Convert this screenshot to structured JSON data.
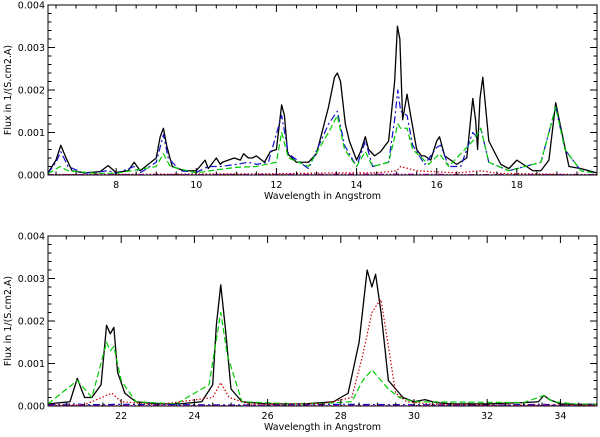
{
  "chart_data": [
    {
      "type": "line",
      "xlabel": "Wavelength in Angstrom",
      "ylabel": "Flux in 1/(S.cm2.A)",
      "xlim": [
        6.3,
        20.0
      ],
      "ylim": [
        0,
        0.004
      ],
      "xticks": [
        8,
        10,
        12,
        14,
        16,
        18
      ],
      "xtick_labels": [
        "8",
        "10",
        "12",
        "14",
        "16",
        "18"
      ],
      "yticks": [
        0,
        0.001,
        0.002,
        0.003,
        0.004
      ],
      "ytick_labels": [
        "0.000",
        "0.001",
        "0.002",
        "0.003",
        "0.004"
      ],
      "grid": false,
      "series": [
        {
          "color": "#000000",
          "dash": "solid",
          "x": [
            6.3,
            6.5,
            6.62,
            6.75,
            6.9,
            7.2,
            7.6,
            7.8,
            8.0,
            8.3,
            8.45,
            8.6,
            9.0,
            9.1,
            9.18,
            9.26,
            9.4,
            9.7,
            10.0,
            10.22,
            10.3,
            10.5,
            10.6,
            10.65,
            10.8,
            10.95,
            11.1,
            11.18,
            11.3,
            11.4,
            11.5,
            11.7,
            11.85,
            12.0,
            12.13,
            12.2,
            12.28,
            12.5,
            12.8,
            13.0,
            13.3,
            13.45,
            13.52,
            13.6,
            13.72,
            13.82,
            14.0,
            14.1,
            14.22,
            14.3,
            14.45,
            14.6,
            14.8,
            14.95,
            15.02,
            15.08,
            15.15,
            15.26,
            15.35,
            15.5,
            15.62,
            15.7,
            15.85,
            16.0,
            16.07,
            16.2,
            16.5,
            16.75,
            16.9,
            16.97,
            17.02,
            17.08,
            17.15,
            17.3,
            17.6,
            17.8,
            18.0,
            18.4,
            18.6,
            18.8,
            18.97,
            19.1,
            19.3,
            19.6,
            19.8,
            20.0
          ],
          "y": [
            5e-05,
            0.00035,
            0.0007,
            0.0004,
            0.0001,
            5e-05,
            8e-05,
            0.00022,
            6e-05,
            0.0001,
            0.0003,
            0.0001,
            0.0004,
            0.0009,
            0.0011,
            0.0007,
            0.0002,
            0.0001,
            0.0001,
            0.00035,
            0.00015,
            0.0004,
            0.00025,
            0.0003,
            0.00035,
            0.0004,
            0.00035,
            0.0005,
            0.0004,
            0.0004,
            0.00045,
            0.0003,
            0.00055,
            0.0006,
            0.00165,
            0.0014,
            0.0005,
            0.0003,
            0.0003,
            0.0005,
            0.0016,
            0.0023,
            0.0024,
            0.0022,
            0.0012,
            0.0008,
            0.00035,
            0.00055,
            0.0009,
            0.0006,
            0.00045,
            0.00055,
            0.0008,
            0.0022,
            0.0035,
            0.0032,
            0.0013,
            0.0019,
            0.0014,
            0.0006,
            0.00045,
            0.00045,
            0.00035,
            0.0008,
            0.0009,
            0.00045,
            0.00025,
            0.0004,
            0.0018,
            0.0013,
            0.0006,
            0.0018,
            0.0023,
            0.0008,
            0.00025,
            0.00015,
            0.00035,
            0.0001,
            0.0001,
            0.00035,
            0.0017,
            0.0011,
            0.0002,
            0.00015,
            0.0001,
            5e-05
          ]
        },
        {
          "color": "#1010cc",
          "dash": "dashdot",
          "x": [
            6.3,
            6.5,
            6.62,
            6.8,
            7.2,
            7.8,
            8.0,
            8.45,
            8.6,
            9.0,
            9.18,
            9.3,
            9.6,
            10.0,
            10.3,
            10.6,
            11.0,
            11.3,
            11.5,
            11.8,
            12.13,
            12.3,
            12.8,
            13.3,
            13.52,
            13.7,
            14.0,
            14.22,
            14.4,
            14.8,
            14.95,
            15.03,
            15.1,
            15.26,
            15.4,
            15.7,
            16.0,
            16.1,
            16.3,
            16.6,
            16.9,
            17.0,
            17.1,
            17.3,
            17.8,
            18.6,
            18.97,
            19.2,
            19.6,
            20.0
          ],
          "y": [
            4e-05,
            0.0003,
            0.00055,
            0.0002,
            4e-05,
            0.0001,
            4e-05,
            0.0002,
            5e-05,
            0.0003,
            0.00095,
            0.0004,
            0.0001,
            6e-05,
            0.0002,
            0.0002,
            0.00025,
            0.0003,
            0.00025,
            0.0003,
            0.0014,
            0.0005,
            0.00015,
            0.0012,
            0.0015,
            0.0007,
            0.0002,
            0.0008,
            0.0002,
            0.0003,
            0.0013,
            0.002,
            0.0015,
            0.0014,
            0.0007,
            0.00025,
            0.00065,
            0.0007,
            0.0002,
            0.0002,
            0.001,
            0.0009,
            0.0011,
            0.0003,
            0.0001,
            0.0003,
            0.0016,
            0.0006,
            0.0001,
            4e-05
          ]
        },
        {
          "color": "#00cc00",
          "dash": "dashed",
          "x": [
            6.3,
            6.6,
            6.8,
            7.5,
            8.0,
            9.0,
            9.18,
            9.35,
            10.0,
            10.5,
            11.0,
            11.5,
            12.0,
            12.13,
            12.3,
            12.8,
            13.3,
            13.52,
            13.7,
            14.0,
            14.22,
            14.4,
            14.8,
            15.03,
            15.1,
            15.26,
            15.4,
            15.8,
            16.07,
            16.3,
            16.9,
            17.1,
            17.3,
            17.8,
            18.6,
            18.97,
            19.2,
            19.6,
            20.0
          ],
          "y": [
            3e-05,
            0.0002,
            0.0001,
            4e-05,
            4e-05,
            0.0002,
            0.0005,
            0.0002,
            5e-05,
            0.00012,
            0.00018,
            0.0002,
            0.0003,
            0.001,
            0.0004,
            0.0002,
            0.001,
            0.0014,
            0.0006,
            0.0002,
            0.00055,
            0.0002,
            0.0003,
            0.0012,
            0.0011,
            0.0011,
            0.0006,
            0.00025,
            0.0005,
            0.0002,
            0.0008,
            0.0011,
            0.0003,
            0.0001,
            0.0003,
            0.0016,
            0.0006,
            0.0001,
            4e-05
          ]
        },
        {
          "color": "#cc0000",
          "dash": "dotted",
          "x": [
            6.3,
            9.0,
            12.0,
            13.5,
            14.5,
            15.0,
            15.1,
            15.5,
            16.5,
            17.1,
            17.5,
            19.0,
            20.0
          ],
          "y": [
            1e-05,
            2e-05,
            3e-05,
            5e-05,
            5e-05,
            0.0001,
            0.0002,
            0.0001,
            5e-05,
            0.0001,
            4e-05,
            2e-05,
            1e-05
          ]
        },
        {
          "color": "#cc00cc",
          "dash": "dashdotdot",
          "x": [
            6.3,
            10.0,
            15.0,
            17.0,
            18.8,
            20.0
          ],
          "y": [
            1e-05,
            1e-05,
            2e-05,
            1e-05,
            1e-05,
            1e-05
          ]
        }
      ]
    },
    {
      "type": "line",
      "xlabel": "Wavelength in Angstrom",
      "ylabel": "Flux in 1/(S.cm2.A)",
      "xlim": [
        20.0,
        35.0
      ],
      "ylim": [
        0,
        0.004
      ],
      "xticks": [
        22,
        24,
        26,
        28,
        30,
        32,
        34
      ],
      "xtick_labels": [
        "22",
        "24",
        "26",
        "28",
        "30",
        "32",
        "34"
      ],
      "yticks": [
        0,
        0.001,
        0.002,
        0.003,
        0.004
      ],
      "ytick_labels": [
        "0.000",
        "0.001",
        "0.002",
        "0.003",
        "0.004"
      ],
      "grid": false,
      "series": [
        {
          "color": "#000000",
          "dash": "solid",
          "x": [
            20.0,
            20.6,
            20.8,
            21.0,
            21.2,
            21.45,
            21.6,
            21.7,
            21.8,
            21.9,
            22.1,
            22.4,
            23.0,
            23.6,
            24.2,
            24.5,
            24.6,
            24.72,
            24.85,
            25.0,
            25.3,
            26.0,
            27.0,
            27.8,
            28.2,
            28.5,
            28.72,
            28.85,
            28.95,
            29.1,
            29.3,
            29.5,
            29.7,
            30.0,
            30.3,
            30.6,
            31.0,
            32.0,
            33.0,
            33.4,
            33.55,
            33.7,
            34.0,
            34.5,
            35.0
          ],
          "y": [
            5e-05,
            0.0001,
            0.00065,
            0.0002,
            0.0002,
            0.0005,
            0.0019,
            0.0017,
            0.00185,
            0.0008,
            0.0003,
            0.0001,
            5e-05,
            5e-05,
            0.0001,
            0.0005,
            0.0019,
            0.00285,
            0.0018,
            0.0004,
            0.0001,
            5e-05,
            5e-05,
            0.0001,
            0.0003,
            0.0015,
            0.0032,
            0.0028,
            0.0031,
            0.0022,
            0.0006,
            0.0004,
            0.0002,
            0.0001,
            0.00015,
            8e-05,
            5e-05,
            5e-05,
            8e-05,
            0.0001,
            0.00025,
            0.00015,
            5e-05,
            4e-05,
            4e-05
          ]
        },
        {
          "color": "#00cc00",
          "dash": "dashed",
          "x": [
            20.0,
            20.8,
            21.2,
            21.6,
            21.7,
            21.8,
            22.0,
            22.4,
            23.5,
            24.4,
            24.72,
            24.9,
            25.3,
            27.0,
            28.3,
            28.6,
            28.85,
            29.05,
            29.3,
            29.6,
            30.0,
            33.0,
            33.55,
            33.8,
            34.5,
            35.0
          ],
          "y": [
            5e-05,
            0.0006,
            0.0002,
            0.0015,
            0.0013,
            0.0014,
            0.0006,
            0.0001,
            5e-05,
            0.0005,
            0.0022,
            0.0012,
            0.0001,
            4e-05,
            0.0001,
            0.0006,
            0.00085,
            0.00065,
            0.0004,
            0.0002,
            0.0001,
            8e-05,
            0.00025,
            0.0001,
            4e-05,
            4e-05
          ]
        },
        {
          "color": "#1010cc",
          "dash": "dashdot",
          "x": [
            20.0,
            20.8,
            21.0,
            22.0,
            24.0,
            26.0,
            28.0,
            30.0,
            32.0,
            33.55,
            34.0,
            35.0
          ],
          "y": [
            3e-05,
            5e-05,
            3e-05,
            4e-05,
            3e-05,
            2e-05,
            4e-05,
            3e-05,
            2e-05,
            4e-05,
            2e-05,
            2e-05
          ]
        },
        {
          "color": "#cc0000",
          "dash": "dotted",
          "x": [
            20.0,
            21.0,
            21.6,
            21.75,
            22.0,
            23.0,
            24.5,
            24.72,
            24.95,
            25.5,
            27.5,
            28.3,
            28.6,
            28.85,
            29.0,
            29.1,
            29.3,
            29.5,
            29.8,
            30.5,
            32.0,
            35.0
          ],
          "y": [
            2e-05,
            3e-05,
            0.00025,
            0.0003,
            0.0001,
            3e-05,
            0.0002,
            0.00055,
            0.0002,
            4e-05,
            5e-05,
            0.0002,
            0.0012,
            0.0022,
            0.0024,
            0.0025,
            0.0014,
            0.0003,
            0.0001,
            4e-05,
            2e-05,
            2e-05
          ]
        },
        {
          "color": "#cc00cc",
          "dash": "dashdotdot",
          "x": [
            20.0,
            25.0,
            30.0,
            35.0
          ],
          "y": [
            1e-05,
            1e-05,
            1e-05,
            1e-05
          ]
        }
      ]
    }
  ]
}
